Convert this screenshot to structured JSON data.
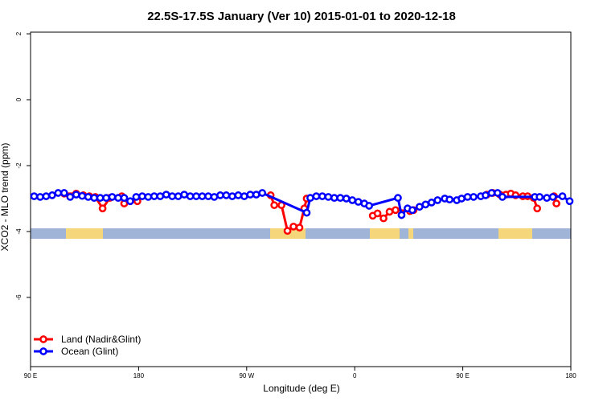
{
  "chart_data": {
    "type": "line",
    "title": "22.5S-17.5S January (Ver 10)   2015-01-01 to 2020-12-18",
    "x_label": "Longitude (deg E)",
    "y_label": "XCO2 - MLO trend (ppm)",
    "xlim": [
      90,
      540
    ],
    "xticks": [
      {
        "value": 90,
        "label": "90 E"
      },
      {
        "value": 180,
        "label": "180"
      },
      {
        "value": 270,
        "label": "90 W"
      },
      {
        "value": 360,
        "label": "0"
      },
      {
        "value": 450,
        "label": "90 E"
      },
      {
        "value": 540,
        "label": "180"
      }
    ],
    "ylim": [
      -8.1,
      2.05
    ],
    "yticks": [
      -6,
      -4,
      -2,
      0,
      2
    ],
    "legend": "bottom-left",
    "series": [
      {
        "name": "Land (Nadir&Glint)",
        "color": "#ff0000",
        "x": [
          118,
          128,
          134,
          139,
          144,
          150,
          156,
          166,
          168,
          179,
          null,
          290,
          293,
          299,
          304,
          309,
          314,
          318,
          320,
          null,
          375,
          379,
          384,
          389,
          394,
          406,
          409,
          null,
          470,
          475,
          481,
          486,
          490,
          494,
          500,
          504,
          509,
          512,
          null,
          526,
          528
        ],
        "values": [
          -2.85,
          -2.85,
          -2.9,
          -2.93,
          -2.95,
          -3.3,
          -2.98,
          -2.93,
          -3.15,
          -3.08,
          null,
          -2.9,
          -3.2,
          -3.2,
          -3.98,
          -3.85,
          -3.88,
          -3.3,
          -3.0,
          null,
          -3.52,
          -3.45,
          -3.6,
          -3.4,
          -3.35,
          -3.38,
          -3.35,
          null,
          -2.88,
          -2.83,
          -2.88,
          -2.88,
          -2.85,
          -2.9,
          -2.93,
          -2.93,
          -2.98,
          -3.3,
          null,
          -2.93,
          -3.15
        ]
      },
      {
        "name": "Ocean (Glint)",
        "color": "#0000ff",
        "x": [
          93,
          98,
          103,
          108,
          113,
          118,
          123,
          128,
          133,
          138,
          143,
          148,
          153,
          158,
          163,
          168,
          173,
          178,
          183,
          188,
          193,
          198,
          203,
          208,
          213,
          218,
          223,
          228,
          233,
          238,
          243,
          248,
          253,
          258,
          263,
          268,
          273,
          278,
          283,
          320,
          323,
          328,
          333,
          338,
          343,
          348,
          353,
          358,
          363,
          368,
          372,
          396,
          399,
          404,
          408,
          414,
          419,
          424,
          429,
          435,
          439,
          445,
          449,
          454,
          459,
          465,
          469,
          474,
          479,
          483,
          510,
          514,
          520,
          525,
          533,
          539
        ],
        "values": [
          -2.93,
          -2.95,
          -2.93,
          -2.9,
          -2.83,
          -2.83,
          -2.95,
          -2.88,
          -2.92,
          -2.95,
          -2.98,
          -2.98,
          -2.98,
          -2.95,
          -2.98,
          -2.98,
          -3.08,
          -2.95,
          -2.93,
          -2.95,
          -2.93,
          -2.93,
          -2.88,
          -2.93,
          -2.93,
          -2.88,
          -2.93,
          -2.93,
          -2.93,
          -2.93,
          -2.95,
          -2.9,
          -2.9,
          -2.93,
          -2.9,
          -2.93,
          -2.88,
          -2.88,
          -2.83,
          -3.43,
          -2.98,
          -2.93,
          -2.93,
          -2.95,
          -2.98,
          -2.98,
          -3.0,
          -3.05,
          -3.1,
          -3.15,
          -3.22,
          -2.98,
          -3.5,
          -3.3,
          -3.35,
          -3.25,
          -3.18,
          -3.12,
          -3.05,
          -3.0,
          -3.03,
          -3.05,
          -3.0,
          -2.95,
          -2.95,
          -2.93,
          -2.9,
          -2.83,
          -2.83,
          -2.95,
          -2.95,
          -2.95,
          -2.98,
          -2.95,
          -2.93,
          -3.08
        ]
      }
    ]
  }
}
